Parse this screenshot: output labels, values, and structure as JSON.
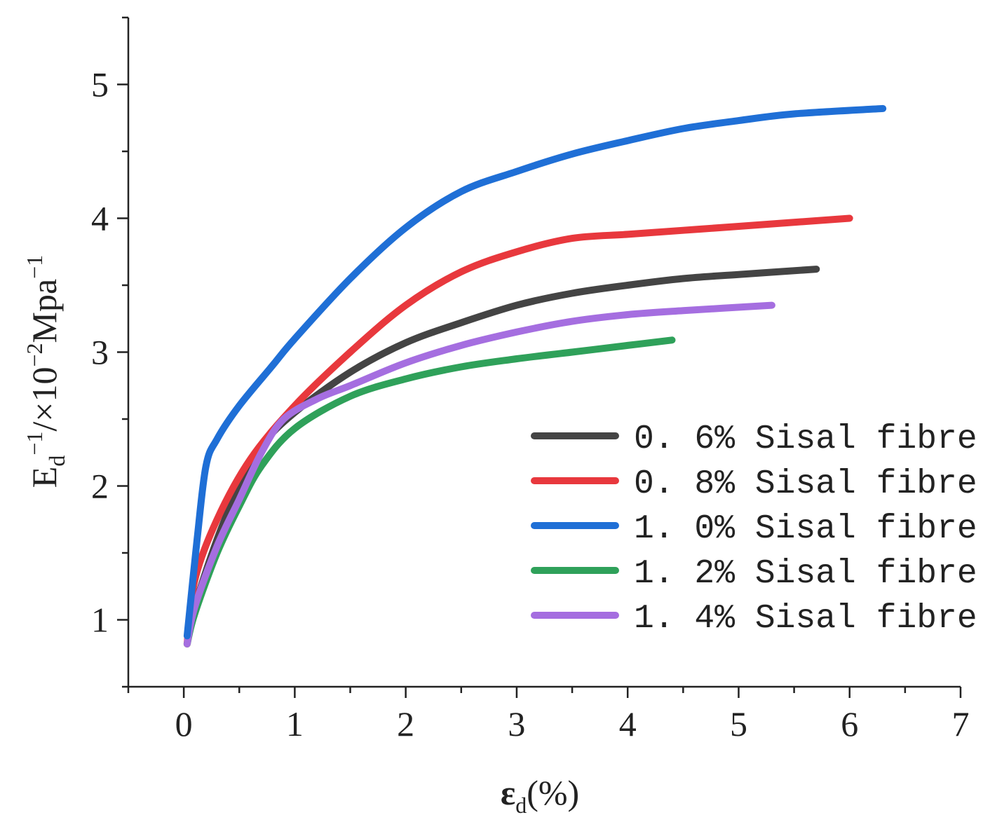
{
  "chart_data": {
    "type": "line",
    "title": "",
    "xlabel": {
      "main": "ε",
      "sub": "d",
      "rest": "(%)"
    },
    "ylabel": {
      "E": "E",
      "E_sub": "d",
      "E_sup": "−1",
      "mid": "/×10",
      "mid_sup": "−2",
      "unit": "Mpa",
      "unit_sup": "−1"
    },
    "xlim": [
      -0.5,
      7
    ],
    "ylim": [
      0.5,
      5.5
    ],
    "xticks": [
      0,
      1,
      2,
      3,
      4,
      5,
      6,
      7
    ],
    "yticks": [
      1,
      2,
      3,
      4,
      5
    ],
    "xtick_labels": [
      "0",
      "1",
      "2",
      "3",
      "4",
      "5",
      "6",
      "7"
    ],
    "ytick_labels": [
      "1",
      "2",
      "3",
      "4",
      "5"
    ],
    "legend_position": "lower-right",
    "series": [
      {
        "name": "0.6% Sisal fibre",
        "label": "0. 6% Sisal fibre",
        "color": "#444444",
        "points": [
          [
            0.03,
            0.82
          ],
          [
            0.1,
            1.1
          ],
          [
            0.3,
            1.6
          ],
          [
            0.5,
            2.0
          ],
          [
            0.7,
            2.3
          ],
          [
            1.0,
            2.55
          ],
          [
            1.5,
            2.85
          ],
          [
            2.0,
            3.07
          ],
          [
            2.5,
            3.22
          ],
          [
            3.0,
            3.35
          ],
          [
            3.5,
            3.44
          ],
          [
            4.0,
            3.5
          ],
          [
            4.5,
            3.55
          ],
          [
            5.0,
            3.58
          ],
          [
            5.7,
            3.62
          ]
        ]
      },
      {
        "name": "0.8% Sisal fibre",
        "label": "0. 8% Sisal fibre",
        "color": "#e8383d",
        "points": [
          [
            0.03,
            0.82
          ],
          [
            0.1,
            1.3
          ],
          [
            0.3,
            1.75
          ],
          [
            0.6,
            2.2
          ],
          [
            1.0,
            2.6
          ],
          [
            1.5,
            3.0
          ],
          [
            2.0,
            3.35
          ],
          [
            2.5,
            3.6
          ],
          [
            3.0,
            3.75
          ],
          [
            3.5,
            3.85
          ],
          [
            4.0,
            3.88
          ],
          [
            4.5,
            3.91
          ],
          [
            5.0,
            3.94
          ],
          [
            6.0,
            4.0
          ]
        ]
      },
      {
        "name": "1.0% Sisal fibre",
        "label": "1. 0% Sisal fibre",
        "color": "#1f6fd6",
        "points": [
          [
            0.03,
            0.88
          ],
          [
            0.12,
            1.6
          ],
          [
            0.2,
            2.15
          ],
          [
            0.3,
            2.35
          ],
          [
            0.5,
            2.6
          ],
          [
            0.8,
            2.9
          ],
          [
            1.0,
            3.1
          ],
          [
            1.5,
            3.55
          ],
          [
            2.0,
            3.93
          ],
          [
            2.5,
            4.2
          ],
          [
            3.0,
            4.35
          ],
          [
            3.5,
            4.48
          ],
          [
            4.0,
            4.58
          ],
          [
            4.5,
            4.67
          ],
          [
            5.0,
            4.73
          ],
          [
            5.5,
            4.78
          ],
          [
            6.3,
            4.82
          ]
        ]
      },
      {
        "name": "1.2% Sisal fibre",
        "label": "1. 2% Sisal fibre",
        "color": "#2fa15a",
        "points": [
          [
            0.03,
            0.82
          ],
          [
            0.1,
            1.05
          ],
          [
            0.3,
            1.5
          ],
          [
            0.5,
            1.85
          ],
          [
            0.7,
            2.15
          ],
          [
            1.0,
            2.43
          ],
          [
            1.5,
            2.67
          ],
          [
            2.0,
            2.8
          ],
          [
            2.5,
            2.89
          ],
          [
            3.0,
            2.95
          ],
          [
            3.5,
            3.0
          ],
          [
            4.0,
            3.05
          ],
          [
            4.4,
            3.09
          ]
        ]
      },
      {
        "name": "1.4% Sisal fibre",
        "label": "1. 4% Sisal fibre",
        "color": "#a56ee0",
        "points": [
          [
            0.03,
            0.82
          ],
          [
            0.1,
            1.1
          ],
          [
            0.3,
            1.55
          ],
          [
            0.5,
            1.9
          ],
          [
            0.7,
            2.25
          ],
          [
            0.9,
            2.5
          ],
          [
            1.2,
            2.65
          ],
          [
            1.5,
            2.75
          ],
          [
            2.0,
            2.92
          ],
          [
            2.5,
            3.05
          ],
          [
            3.0,
            3.15
          ],
          [
            3.5,
            3.23
          ],
          [
            4.0,
            3.28
          ],
          [
            4.5,
            3.31
          ],
          [
            5.3,
            3.35
          ]
        ]
      }
    ]
  }
}
